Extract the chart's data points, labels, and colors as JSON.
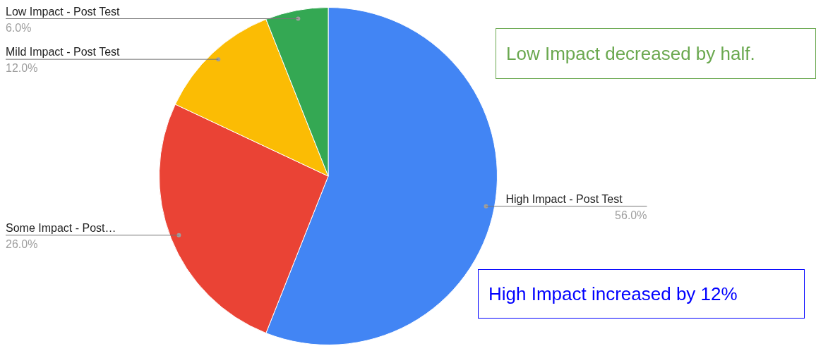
{
  "chart_data": {
    "type": "pie",
    "categories": [
      "High Impact - Post Test",
      "Some Impact - Post…",
      "Mild Impact - Post Test",
      "Low Impact - Post Test"
    ],
    "values": [
      56,
      26,
      12,
      6
    ],
    "colors": [
      "#4285f4",
      "#ea4335",
      "#fbbc04",
      "#34a853"
    ],
    "value_labels": [
      "56.0%",
      "26.0%",
      "12.0%",
      "6.0%"
    ],
    "annotations": [
      "Low Impact decreased by half.",
      "High Impact increased by 12%"
    ]
  }
}
